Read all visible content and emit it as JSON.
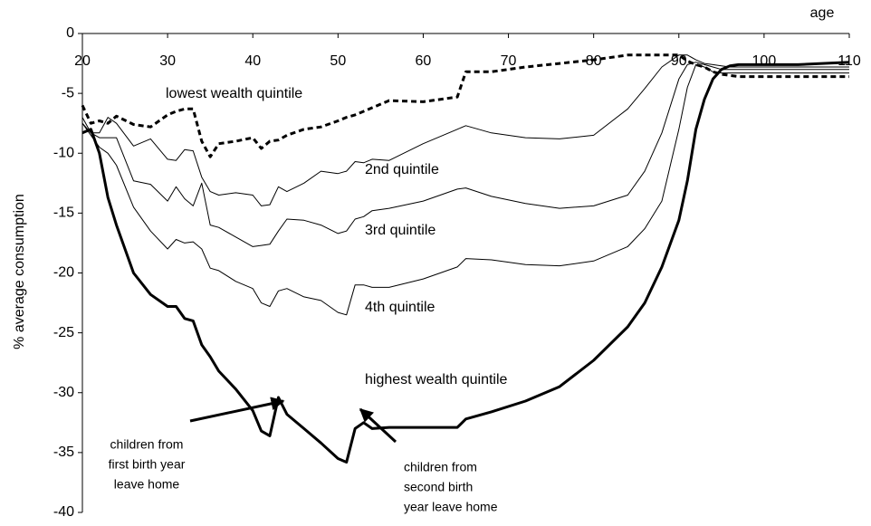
{
  "chart_data": {
    "type": "line",
    "x_label": "age",
    "y_label": "% average consumption",
    "xlim": [
      20,
      110
    ],
    "xticks": [
      20,
      30,
      40,
      50,
      60,
      70,
      80,
      90,
      100,
      110
    ],
    "ylim": [
      -40,
      0
    ],
    "yticks": [
      0,
      -5,
      -10,
      -15,
      -20,
      -25,
      -30,
      -35,
      -40
    ],
    "x": [
      20,
      21,
      22,
      23,
      24,
      26,
      28,
      30,
      31,
      32,
      33,
      34,
      35,
      36,
      38,
      40,
      41,
      42,
      43,
      44,
      46,
      48,
      50,
      51,
      52,
      53,
      54,
      56,
      60,
      64,
      65,
      68,
      72,
      76,
      80,
      84,
      86,
      88,
      90,
      91,
      92,
      93,
      94,
      95,
      96,
      97,
      98,
      100,
      104,
      110
    ],
    "series": [
      {
        "name": "lowest wealth quintile",
        "color": "#000000",
        "style": "dotted",
        "width": 3,
        "values": [
          -6,
          -7.5,
          -7.3,
          -7.5,
          -6.9,
          -7.6,
          -7.8,
          -6.8,
          -6.5,
          -6.3,
          -6.3,
          -9,
          -10.3,
          -9.2,
          -9,
          -8.7,
          -9.6,
          -9,
          -8.9,
          -8.5,
          -8,
          -7.8,
          -7.3,
          -7,
          -6.8,
          -6.5,
          -6.2,
          -5.6,
          -5.7,
          -5.3,
          -3.2,
          -3.2,
          -2.8,
          -2.5,
          -2.2,
          -1.8,
          -1.8,
          -1.8,
          -1.8,
          -2.3,
          -2.6,
          -2.8,
          -3.2,
          -3.4,
          -3.5,
          -3.6,
          -3.6,
          -3.6,
          -3.6,
          -3.6
        ]
      },
      {
        "name": "2nd quintile",
        "color": "#000000",
        "style": "solid",
        "width": 1,
        "values": [
          -7,
          -8.3,
          -8.3,
          -7,
          -7.5,
          -9.4,
          -8.8,
          -10.5,
          -10.6,
          -9.7,
          -9.8,
          -12,
          -13.2,
          -13.5,
          -13.3,
          -13.5,
          -14.4,
          -14.3,
          -12.8,
          -13.2,
          -12.5,
          -11.5,
          -11.7,
          -11.5,
          -10.7,
          -10.8,
          -10.5,
          -10.6,
          -9.2,
          -8,
          -7.7,
          -8.3,
          -8.7,
          -8.8,
          -8.5,
          -6.3,
          -4.6,
          -2.8,
          -1.8,
          -1.8,
          -2.2,
          -2.5,
          -2.6,
          -2.7,
          -2.8,
          -2.8,
          -2.8,
          -2.8,
          -2.8,
          -2.8
        ]
      },
      {
        "name": "3rd quintile",
        "color": "#000000",
        "style": "solid",
        "width": 1,
        "values": [
          -7.5,
          -8.3,
          -8.7,
          -8.7,
          -8.7,
          -12.3,
          -12.6,
          -14,
          -12.8,
          -13.8,
          -14.4,
          -12.5,
          -16,
          -16.2,
          -17,
          -17.8,
          -17.7,
          -17.6,
          -16.5,
          -15.5,
          -15.6,
          -16,
          -16.7,
          -16.5,
          -15.5,
          -15.3,
          -14.8,
          -14.6,
          -14,
          -13,
          -12.9,
          -13.6,
          -14.2,
          -14.6,
          -14.4,
          -13.5,
          -11.5,
          -8.3,
          -3.8,
          -2.6,
          -2.4,
          -2.6,
          -2.8,
          -3,
          -3,
          -3,
          -3,
          -3,
          -3,
          -3
        ]
      },
      {
        "name": "4th quintile",
        "color": "#000000",
        "style": "solid",
        "width": 1,
        "values": [
          -7.5,
          -8.5,
          -9.5,
          -10,
          -11,
          -14.5,
          -16.5,
          -18,
          -17.2,
          -17.5,
          -17.4,
          -18,
          -19.6,
          -19.8,
          -20.7,
          -21.3,
          -22.5,
          -22.8,
          -21.5,
          -21.3,
          -22,
          -22.3,
          -23.3,
          -23.5,
          -21,
          -21,
          -21.2,
          -21.2,
          -20.5,
          -19.5,
          -18.8,
          -18.9,
          -19.3,
          -19.4,
          -19,
          -17.8,
          -16.3,
          -14,
          -8,
          -4.5,
          -2.6,
          -2.8,
          -3.2,
          -3.3,
          -3.3,
          -3.3,
          -3.3,
          -3.3,
          -3.3,
          -3.3
        ]
      },
      {
        "name": "highest wealth quintile",
        "color": "#000000",
        "style": "solid",
        "width": 3,
        "values": [
          -8.3,
          -8,
          -10,
          -13.7,
          -16,
          -20,
          -21.8,
          -22.8,
          -22.8,
          -23.8,
          -24,
          -26,
          -27,
          -28.2,
          -29.7,
          -31.5,
          -33.2,
          -33.6,
          -30.4,
          -31.8,
          -33,
          -34.2,
          -35.5,
          -35.8,
          -33,
          -32.5,
          -33,
          -32.9,
          -32.9,
          -32.9,
          -32.2,
          -31.6,
          -30.7,
          -29.5,
          -27.3,
          -24.5,
          -22.5,
          -19.5,
          -15.6,
          -12.3,
          -8,
          -5.5,
          -3.8,
          -3,
          -2.7,
          -2.6,
          -2.6,
          -2.6,
          -2.6,
          -2.4
        ]
      }
    ],
    "annotations": [
      {
        "lines": [
          "children from",
          "first birth year",
          "leave home"
        ]
      },
      {
        "lines": [
          "children from",
          "second birth",
          "year leave home"
        ]
      }
    ]
  }
}
